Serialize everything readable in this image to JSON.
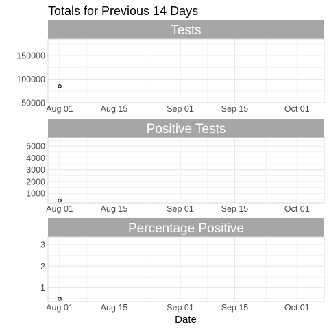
{
  "title": "Totals for Previous 14 Days",
  "xlabel": "Date",
  "colors": {
    "strip": "#a6a6a6",
    "grid_major": "#e6e6e6",
    "grid_minor": "#f2f2f2",
    "frame": "#d9d9d9",
    "point": "#000000"
  },
  "chart_data": [
    {
      "type": "scatter",
      "title": "Tests",
      "xlim": [
        "2020-07-29",
        "2020-10-08"
      ],
      "ylim": [
        50000,
        185000
      ],
      "x_ticks": [
        {
          "date": "2020-08-01",
          "label": "Aug 01"
        },
        {
          "date": "2020-08-15",
          "label": "Aug 15"
        },
        {
          "date": "2020-09-01",
          "label": "Sep 01"
        },
        {
          "date": "2020-09-15",
          "label": "Sep 15"
        },
        {
          "date": "2020-10-01",
          "label": "Oct 01"
        }
      ],
      "y_ticks": [
        {
          "value": 50000,
          "label": "50000"
        },
        {
          "value": 100000,
          "label": "100000"
        },
        {
          "value": 150000,
          "label": "150000"
        }
      ],
      "points": [
        {
          "x": "2020-08-01",
          "y": 85000
        }
      ]
    },
    {
      "type": "scatter",
      "title": "Positive Tests",
      "xlim": [
        "2020-07-29",
        "2020-10-08"
      ],
      "ylim": [
        200,
        5700
      ],
      "x_ticks": [
        {
          "date": "2020-08-01",
          "label": "Aug 01"
        },
        {
          "date": "2020-08-15",
          "label": "Aug 15"
        },
        {
          "date": "2020-09-01",
          "label": "Sep 01"
        },
        {
          "date": "2020-09-15",
          "label": "Sep 15"
        },
        {
          "date": "2020-10-01",
          "label": "Oct 01"
        }
      ],
      "y_ticks": [
        {
          "value": 1000,
          "label": "1000"
        },
        {
          "value": 2000,
          "label": "2000"
        },
        {
          "value": 3000,
          "label": "3000"
        },
        {
          "value": 4000,
          "label": "4000"
        },
        {
          "value": 5000,
          "label": "5000"
        }
      ],
      "points": [
        {
          "x": "2020-08-01",
          "y": 400
        }
      ]
    },
    {
      "type": "scatter",
      "title": "Percentage Positive",
      "xlim": [
        "2020-07-29",
        "2020-10-08"
      ],
      "ylim": [
        0.35,
        3.35
      ],
      "x_ticks": [
        {
          "date": "2020-08-01",
          "label": "Aug 01"
        },
        {
          "date": "2020-08-15",
          "label": "Aug 15"
        },
        {
          "date": "2020-09-01",
          "label": "Sep 01"
        },
        {
          "date": "2020-09-15",
          "label": "Sep 15"
        },
        {
          "date": "2020-10-01",
          "label": "Oct 01"
        }
      ],
      "y_ticks": [
        {
          "value": 1,
          "label": "1"
        },
        {
          "value": 2,
          "label": "2"
        },
        {
          "value": 3,
          "label": "3"
        }
      ],
      "points": [
        {
          "x": "2020-08-01",
          "y": 0.48
        }
      ]
    }
  ]
}
